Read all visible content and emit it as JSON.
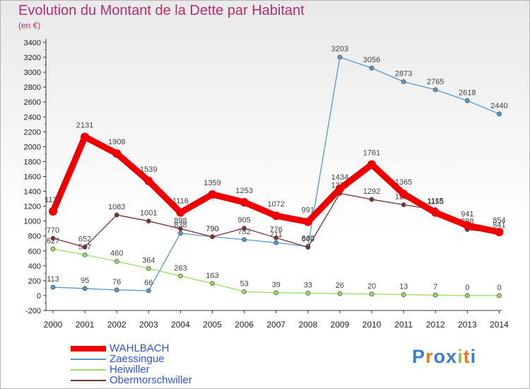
{
  "chart_data": {
    "type": "line",
    "title": "Evolution du Montant de la Dette par Habitant",
    "subtitle": "(en €)",
    "x": [
      2000,
      2001,
      2002,
      2003,
      2004,
      2005,
      2006,
      2007,
      2008,
      2009,
      2010,
      2011,
      2012,
      2013,
      2014
    ],
    "ylim": [
      -200,
      3400
    ],
    "yticks": [
      -200,
      0,
      200,
      400,
      600,
      800,
      1000,
      1200,
      1400,
      1600,
      1800,
      2000,
      2200,
      2400,
      2600,
      2800,
      3000,
      3200,
      3400
    ],
    "series": [
      {
        "name": "WAHLBACH",
        "color": "#ee0000",
        "values": [
          1131,
          2131,
          1908,
          1539,
          1116,
          1359,
          1253,
          1072,
          991,
          1434,
          1761,
          1365,
          1115,
          941,
          854
        ]
      },
      {
        "name": "Zaessingue",
        "color": "#5599cc",
        "values": [
          113,
          95,
          76,
          66,
          838,
          790,
          752,
          711,
          660,
          3203,
          3056,
          2873,
          2765,
          2618,
          2440
        ]
      },
      {
        "name": "Heiwiller",
        "color": "#99dd66",
        "values": [
          627,
          547,
          460,
          364,
          263,
          163,
          53,
          39,
          33,
          26,
          20,
          13,
          7,
          0,
          0
        ]
      },
      {
        "name": "Obermorschwiller",
        "color": "#7a2f33",
        "values": [
          770,
          652,
          1083,
          1001,
          898,
          790,
          905,
          776,
          649,
          1373,
          1292,
          1220,
          1155,
          888,
          841
        ]
      }
    ]
  },
  "logo": {
    "text": "Proxiti",
    "letters": [
      "P",
      "r",
      "o",
      "x",
      "i",
      "t",
      "i"
    ],
    "colors": [
      "#3a7fc8",
      "#e87722",
      "#3a7fc8",
      "#3a7fc8",
      "#8dc63f",
      "#e87722",
      "#3a7fc8"
    ]
  }
}
